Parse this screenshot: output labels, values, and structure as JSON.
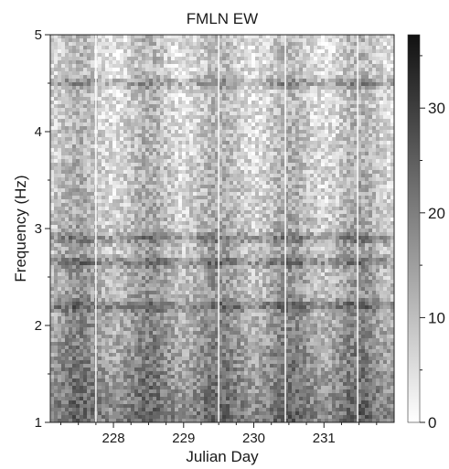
{
  "chart_data": {
    "type": "heatmap",
    "title": "FMLN EW",
    "xlabel": "Julian Day",
    "ylabel": "Frequency (Hz)",
    "xlim": [
      227.1,
      232.0
    ],
    "ylim": [
      1,
      5
    ],
    "x_ticks": [
      228,
      229,
      230,
      231
    ],
    "x_tick_labels": [
      "228",
      "229",
      "230",
      "231"
    ],
    "y_ticks": [
      1,
      2,
      3,
      4,
      5
    ],
    "y_tick_labels": [
      "1",
      "2",
      "3",
      "4",
      "5"
    ],
    "colorbar": {
      "range": [
        0,
        37
      ],
      "ticks": [
        0,
        10,
        20,
        30
      ],
      "tick_labels": [
        "0",
        "10",
        "20",
        "30"
      ],
      "colormap": "greyscale",
      "low_color": "#ffffff",
      "high_color": "#111111"
    },
    "bright_vertical_lines_day": [
      227.75,
      229.5,
      230.45,
      231.48
    ],
    "dark_horizontal_bands_hz": [
      2.2,
      2.65,
      2.9,
      4.5
    ],
    "grid": false
  }
}
